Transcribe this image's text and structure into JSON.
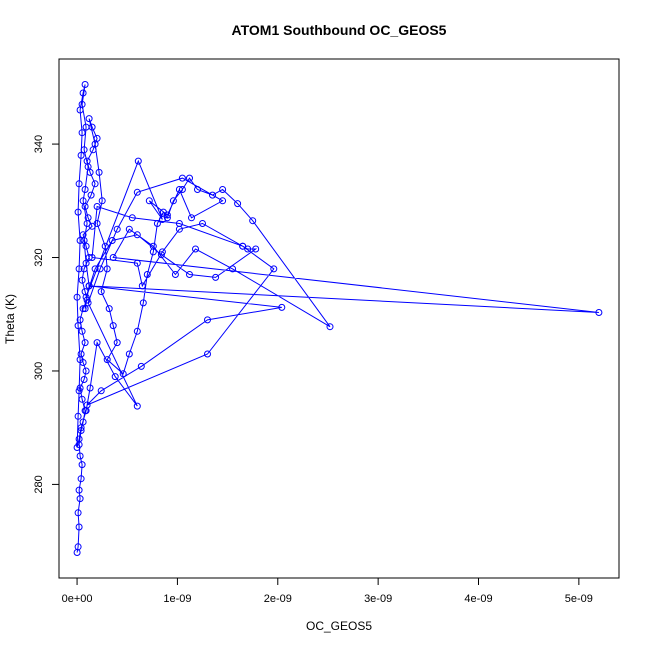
{
  "chart_data": {
    "type": "line",
    "title": "ATOM1 Southbound OC_GEOS5",
    "xlabel": "OC_GEOS5",
    "ylabel": "Theta (K)",
    "xlim": [
      -1.8e-10,
      5.4e-09
    ],
    "ylim": [
      263.5,
      355
    ],
    "grid": false,
    "legend": "none",
    "marker": "open-circle",
    "color": "#0000ff",
    "x_ticks": [
      {
        "value": 0,
        "label": "0e+00"
      },
      {
        "value": 1e-09,
        "label": "1e-09"
      },
      {
        "value": 2e-09,
        "label": "2e-09"
      },
      {
        "value": 3e-09,
        "label": "3e-09"
      },
      {
        "value": 4e-09,
        "label": "4e-09"
      },
      {
        "value": 5e-09,
        "label": "5e-09"
      }
    ],
    "y_ticks": [
      {
        "value": 280,
        "label": "280"
      },
      {
        "value": 300,
        "label": "300"
      },
      {
        "value": 320,
        "label": "320"
      },
      {
        "value": 340,
        "label": "340"
      }
    ],
    "series": [
      {
        "x": [
          0.0,
          1e-11,
          2e-11,
          1e-11,
          3e-11,
          2e-11,
          4e-11,
          5e-11,
          3e-11,
          2e-11,
          4e-11,
          6e-11,
          8e-11,
          5e-11,
          3e-11,
          7e-11,
          9e-11,
          6e-11,
          4e-11,
          8e-11,
          5e-11,
          3e-11,
          6e-11,
          1e-10,
          8e-11,
          5e-11,
          7e-11,
          1.2e-10,
          9e-11,
          6e-11,
          1.5e-10,
          1.1e-10,
          8e-11,
          1.4e-10,
          1.8e-10,
          1.3e-10,
          1e-10,
          1.6e-10,
          2e-10,
          1.5e-10,
          1.2e-10,
          1.8e-10,
          2.2e-10,
          2.5e-10,
          2e-10,
          2.8e-10,
          3e-10,
          2.4e-10,
          3.2e-10,
          3.6e-10,
          4e-10,
          3e-10,
          4.6e-10,
          5.2e-10,
          6e-10,
          6.6e-10,
          7e-10,
          7.6e-10,
          8e-10,
          8.6e-10,
          9e-10,
          9.6e-10,
          1.05e-09,
          1.12e-09,
          1.2e-09,
          1.35e-09,
          1.45e-09,
          1.6e-09,
          1.75e-09,
          2.52e-09,
          1.55e-09,
          1.18e-09,
          9.8e-10,
          7.6e-10,
          5.2e-10,
          3.6e-10,
          5.2e-09,
          1.2e-10,
          2.04e-09,
          1.3e-09,
          6.4e-10,
          2.4e-10,
          1e-10,
          1.3e-09,
          1.96e-09,
          1.65e-09,
          1.02e-09,
          5.5e-10,
          2e-10,
          1.5e-10,
          6e-10,
          6.5e-10,
          8.5e-10,
          1.02e-09,
          1.25e-09,
          1.65e-09,
          1.7e-09,
          1.78e-09,
          1.38e-09,
          1.12e-09,
          8.4e-10,
          6e-10,
          3.5e-10,
          1.8e-10,
          9e-11,
          6.1e-10,
          8.5e-10,
          7.2e-10,
          9e-10,
          1.02e-09,
          1.14e-09,
          1.45e-09,
          1.05e-09,
          6e-10,
          4e-10,
          2.3e-10,
          1.1e-10,
          6e-10,
          3.8e-10,
          2e-10,
          1.3e-10,
          9e-11,
          4e-11,
          2e-11,
          0.0,
          1e-11,
          2e-11,
          3e-11,
          1e-11,
          0.0,
          2e-11,
          3e-11,
          1e-11,
          2e-11,
          4e-11,
          5e-11,
          3e-11,
          6e-11,
          8e-11,
          5e-11,
          9e-11,
          7e-11,
          1.1e-10,
          8e-11,
          6e-11,
          1e-10,
          7e-11,
          9e-11,
          1.2e-10,
          8e-11
        ],
        "y": [
          268.0,
          269.0,
          272.5,
          275.0,
          277.5,
          279.0,
          281.0,
          283.5,
          285.0,
          287.0,
          289.5,
          291.0,
          293.0,
          295.0,
          297.0,
          298.5,
          300.0,
          301.5,
          303.0,
          305.0,
          307.0,
          309.0,
          311.0,
          312.5,
          314.0,
          316.0,
          318.0,
          320.0,
          322.0,
          324.0,
          325.5,
          327.0,
          329.0,
          331.0,
          333.0,
          335.0,
          337.0,
          339.0,
          341.0,
          343.0,
          344.5,
          340.0,
          335.0,
          330.0,
          326.0,
          322.0,
          318.0,
          314.0,
          311.0,
          308.0,
          305.0,
          302.0,
          299.5,
          303.0,
          307.0,
          312.0,
          317.0,
          321.0,
          326.0,
          328.0,
          327.0,
          330.0,
          332.0,
          334.0,
          332.0,
          331.0,
          332.0,
          329.5,
          326.5,
          307.8,
          318.0,
          321.5,
          317.0,
          322.0,
          325.0,
          320.0,
          310.3,
          315.0,
          311.2,
          309.0,
          300.8,
          296.5,
          294.0,
          303.0,
          318.0,
          322.0,
          326.0,
          327.0,
          329.0,
          320.0,
          319.0,
          315.0,
          321.0,
          325.0,
          326.0,
          322.0,
          321.5,
          321.5,
          316.5,
          317.0,
          320.5,
          324.0,
          323.0,
          318.0,
          313.0,
          337.0,
          326.7,
          330.0,
          327.5,
          332.0,
          327.0,
          330.0,
          334.0,
          331.5,
          325.0,
          318.0,
          312.0,
          293.8,
          299.0,
          305.0,
          297.0,
          293.0,
          290.0,
          288.0,
          286.5,
          292.0,
          296.5,
          302.0,
          308.0,
          313.0,
          318.0,
          323.0,
          328.0,
          333.0,
          338.0,
          342.0,
          346.0,
          349.0,
          350.5,
          347.0,
          343.0,
          339.0,
          336.0,
          332.0,
          330.0,
          326.0,
          323.0,
          319.0,
          315.0,
          311.0
        ]
      }
    ]
  }
}
